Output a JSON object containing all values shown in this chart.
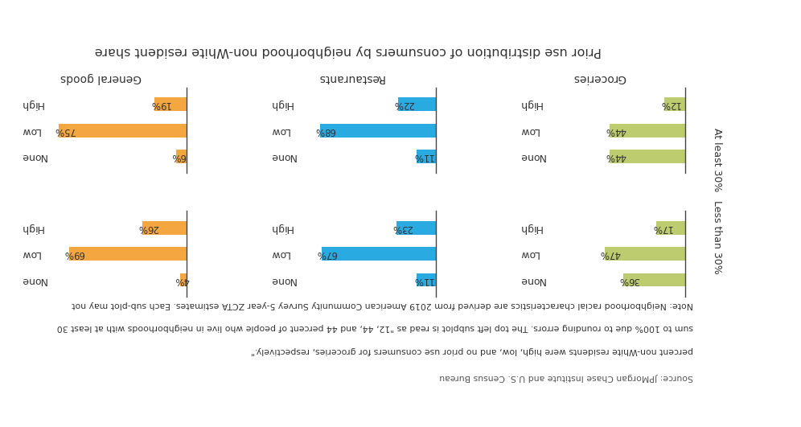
{
  "title": "Prior use distribution of consumers by neighborhood non-White resident share",
  "col_labels": [
    "General goods",
    "Restaurants",
    "Groceries"
  ],
  "bar_colors": [
    "#F4A740",
    "#29ABE2",
    "#BDCC6E"
  ],
  "row_labels": [
    "At least 30%",
    "Less than 30%"
  ],
  "categories": [
    "High",
    "Low",
    "None"
  ],
  "values": [
    [
      [
        19,
        75,
        6
      ],
      [
        22,
        68,
        11
      ],
      [
        12,
        44,
        44
      ]
    ],
    [
      [
        26,
        69,
        4
      ],
      [
        23,
        67,
        11
      ],
      [
        17,
        47,
        36
      ]
    ]
  ],
  "note_line1": "Note: Neighborhood racial characteristics are derived from 2019 American Community Survey 5-year ZCTA estimates. Each sub-plot may not",
  "note_line2": "sum to 100% due to rounding errors. The top left subplot is read as \"12, 44, and 44 percent of people who live in neighborhoods with at least 30",
  "note_line3": "percent non-White residents were high, low, and no prior use consumers for groceries, respectively.\"",
  "source": "Source: JPMorgan Chase Institute and U.S. Census Bureau",
  "background_color": "#FFFFFF",
  "text_color": "#333333",
  "title_fontsize": 11.5,
  "col_label_fontsize": 10,
  "cat_label_fontsize": 9,
  "value_fontsize": 8.5,
  "row_label_fontsize": 9,
  "note_fontsize": 7.8,
  "bar_height": 0.52
}
